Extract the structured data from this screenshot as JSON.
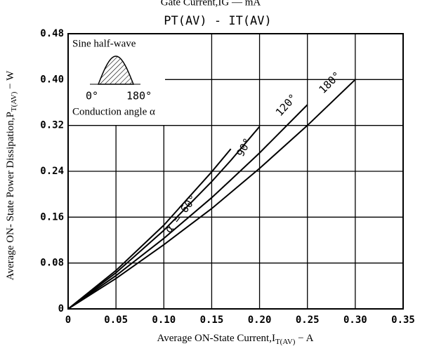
{
  "chart_data": {
    "type": "line",
    "header": "Gate Current,IG — mA",
    "title": "PT(AV) - IT(AV)",
    "x_label": [
      "Average ON-State Current,I",
      "T(AV)",
      " − A"
    ],
    "y_label": [
      "Average ON- State Power Dissipation,P",
      "T(AV)",
      " − W"
    ],
    "x": [
      0,
      0.05,
      0.1,
      0.15,
      0.17,
      0.2,
      0.25,
      0.3
    ],
    "series": [
      {
        "name": "α = 60°",
        "color": "#000000",
        "values": [
          0,
          0.067,
          0.146,
          0.239,
          0.279,
          null,
          null,
          null
        ]
      },
      {
        "name": "90°",
        "color": "#000000",
        "values": [
          0,
          0.063,
          0.137,
          0.222,
          0.259,
          0.318,
          null,
          null
        ]
      },
      {
        "name": "120°",
        "color": "#000000",
        "values": [
          0,
          0.058,
          0.123,
          0.194,
          0.225,
          0.272,
          0.356,
          null
        ]
      },
      {
        "name": "180°",
        "color": "#000000",
        "values": [
          0,
          0.053,
          0.112,
          0.175,
          0.203,
          0.245,
          0.32,
          0.4
        ]
      }
    ],
    "xlim": [
      0,
      0.35
    ],
    "xticks": [
      0,
      0.05,
      {
        "value": 0.1,
        "label": "0.10"
      },
      0.15,
      {
        "value": 0.2,
        "label": "0.20"
      },
      0.25,
      {
        "value": 0.3,
        "label": "0.30"
      },
      0.35
    ],
    "ylim": [
      0,
      0.48
    ],
    "yticks": [
      0,
      0.08,
      0.16,
      0.24,
      0.32,
      {
        "value": 0.4,
        "label": "0.40"
      },
      0.48
    ],
    "grid": true,
    "inset": {
      "title": "Sine half-wave",
      "start": "0°",
      "end": "180°",
      "caption": "Conduction angle α"
    }
  }
}
